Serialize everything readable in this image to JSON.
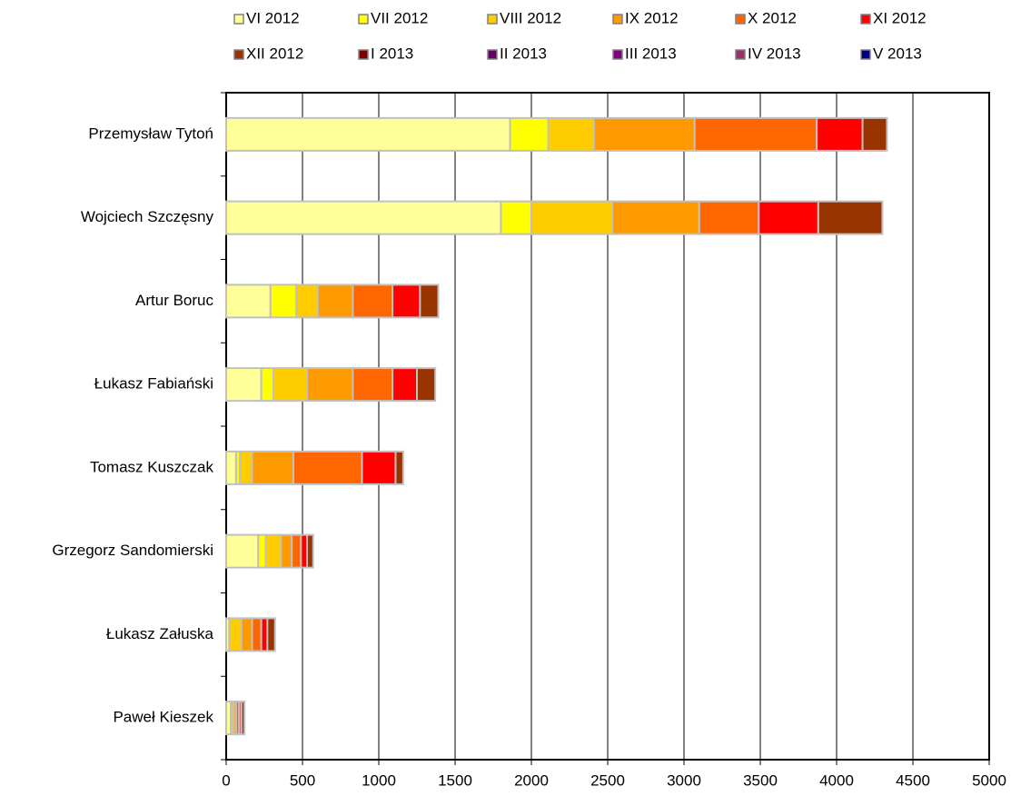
{
  "chart_data": {
    "type": "stacked-barh",
    "categories": [
      "Przemysław Tytoń",
      "Wojciech Szczęsny",
      "Artur Boruc",
      "Łukasz Fabiański",
      "Tomasz Kuszczak",
      "Grzegorz Sandomierski",
      "Łukasz Załuska",
      "Paweł Kieszek"
    ],
    "series": [
      {
        "name": "VI 2012",
        "color": "#ffff99",
        "values": [
          1860,
          1800,
          290,
          230,
          65,
          210,
          20,
          30
        ]
      },
      {
        "name": "VII 2012",
        "color": "#ffff00",
        "values": [
          250,
          200,
          170,
          80,
          25,
          50,
          0,
          0
        ]
      },
      {
        "name": "VIII 2012",
        "color": "#ffcc00",
        "values": [
          300,
          530,
          140,
          220,
          80,
          100,
          80,
          20
        ]
      },
      {
        "name": "IX 2012",
        "color": "#ff9900",
        "values": [
          660,
          570,
          230,
          300,
          270,
          70,
          70,
          15
        ]
      },
      {
        "name": "X 2012",
        "color": "#ff6600",
        "values": [
          800,
          390,
          260,
          260,
          450,
          60,
          60,
          20
        ]
      },
      {
        "name": "XI 2012",
        "color": "#ff0000",
        "values": [
          300,
          390,
          180,
          160,
          220,
          40,
          40,
          15
        ]
      },
      {
        "name": "XII 2012",
        "color": "#993300",
        "values": [
          160,
          420,
          120,
          120,
          50,
          40,
          50,
          20
        ]
      },
      {
        "name": "I 2013",
        "color": "#800000",
        "values": [
          0,
          0,
          0,
          0,
          0,
          0,
          0,
          0
        ]
      },
      {
        "name": "II 2013",
        "color": "#660066",
        "values": [
          0,
          0,
          0,
          0,
          0,
          0,
          0,
          0
        ]
      },
      {
        "name": "III 2013",
        "color": "#800080",
        "values": [
          0,
          0,
          0,
          0,
          0,
          0,
          0,
          0
        ]
      },
      {
        "name": "IV 2013",
        "color": "#993366",
        "values": [
          0,
          0,
          0,
          0,
          0,
          0,
          0,
          0
        ]
      },
      {
        "name": "V 2013",
        "color": "#000080",
        "values": [
          0,
          0,
          0,
          0,
          0,
          0,
          0,
          0
        ]
      }
    ],
    "xlim": [
      0,
      5000
    ],
    "xticks": [
      0,
      500,
      1000,
      1500,
      2000,
      2500,
      3000,
      3500,
      4000,
      4500,
      5000
    ],
    "grid": true,
    "legend": "top"
  }
}
